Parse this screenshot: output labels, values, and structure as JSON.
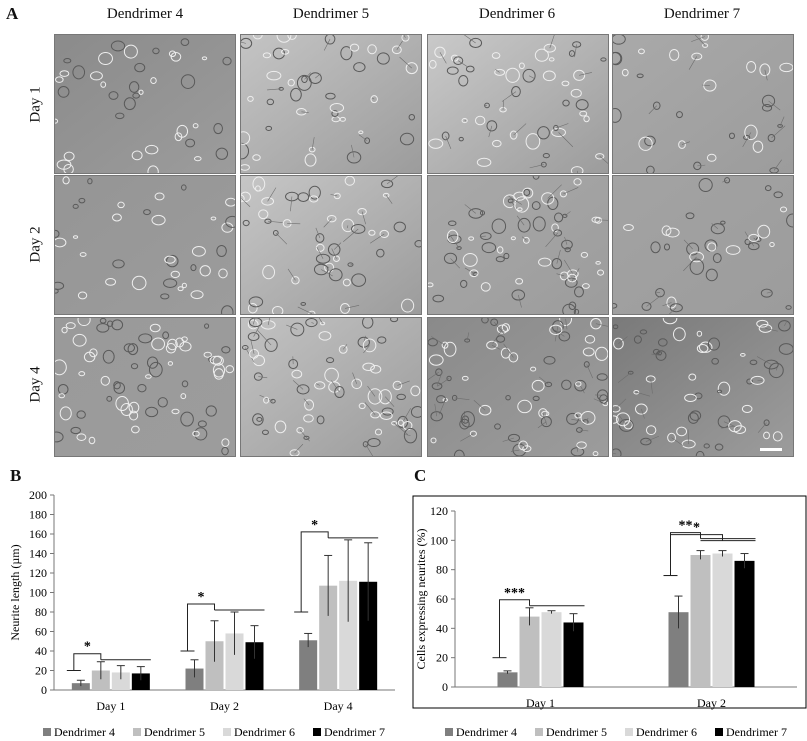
{
  "panels": {
    "a": "A",
    "b": "B",
    "c": "C"
  },
  "micrographs": {
    "columns": [
      "Dendrimer 4",
      "Dendrimer 5",
      "Dendrimer 6",
      "Dendrimer 7"
    ],
    "rows": [
      "Day 1",
      "Day 2",
      "Day 4"
    ],
    "tones": [
      [
        "#8b8b8b",
        "#c4c4c4",
        "#c9c9c9",
        "#a9a9a9"
      ],
      [
        "#959595",
        "#c6c6c6",
        "#a9a9a9",
        "#a3a3a3"
      ],
      [
        "#9a9a9a",
        "#c2c2c2",
        "#8a8a8a",
        "#7a7a7a"
      ]
    ]
  },
  "chart_data": [
    {
      "type": "bar",
      "panel": "B",
      "ylabel": "Neurite length (µm)",
      "ylim": [
        0,
        200
      ],
      "yticks": [
        0,
        20,
        40,
        60,
        80,
        100,
        120,
        140,
        160,
        180,
        200
      ],
      "categories": [
        "Day 1",
        "Day 2",
        "Day 4"
      ],
      "series": [
        {
          "name": "Dendrimer 4",
          "color": "#7f7f7f",
          "values": [
            7,
            22,
            51
          ],
          "errors": [
            3,
            9,
            7
          ]
        },
        {
          "name": "Dendrimer 5",
          "color": "#bfbfbf",
          "values": [
            20,
            50,
            107
          ],
          "errors": [
            9,
            21,
            31
          ]
        },
        {
          "name": "Dendrimer 6",
          "color": "#d9d9d9",
          "values": [
            18,
            58,
            112
          ],
          "errors": [
            7,
            22,
            42
          ]
        },
        {
          "name": "Dendrimer 7",
          "color": "#000000",
          "values": [
            17,
            49,
            111
          ],
          "errors": [
            7,
            17,
            40
          ]
        }
      ],
      "significance": [
        {
          "category": "Day 1",
          "label": "*",
          "level": 20
        },
        {
          "category": "Day 2",
          "label": "*",
          "level": 40
        },
        {
          "category": "Day 4",
          "label": "*",
          "level": 80
        }
      ],
      "legend": "bottom"
    },
    {
      "type": "bar",
      "panel": "C",
      "ylabel": "Cells expressing neurites (%)",
      "ylim": [
        0,
        120
      ],
      "yticks": [
        0,
        20,
        40,
        60,
        80,
        100,
        120
      ],
      "categories": [
        "Day 1",
        "Day 2"
      ],
      "series": [
        {
          "name": "Dendrimer 4",
          "color": "#7f7f7f",
          "values": [
            10,
            51
          ],
          "errors": [
            1,
            11
          ]
        },
        {
          "name": "Dendrimer 5",
          "color": "#bfbfbf",
          "values": [
            48,
            90
          ],
          "errors": [
            6,
            3
          ]
        },
        {
          "name": "Dendrimer 6",
          "color": "#d9d9d9",
          "values": [
            51,
            91
          ],
          "errors": [
            1,
            2
          ]
        },
        {
          "name": "Dendrimer 7",
          "color": "#000000",
          "values": [
            44,
            86
          ],
          "errors": [
            6,
            5
          ]
        }
      ],
      "significance": [
        {
          "category": "Day 1",
          "label": "***",
          "level": 20
        },
        {
          "category": "Day 2",
          "label": "**",
          "level": 76
        },
        {
          "category": "Day 2",
          "label": "*",
          "level": 76
        }
      ],
      "legend": "bottom"
    }
  ]
}
